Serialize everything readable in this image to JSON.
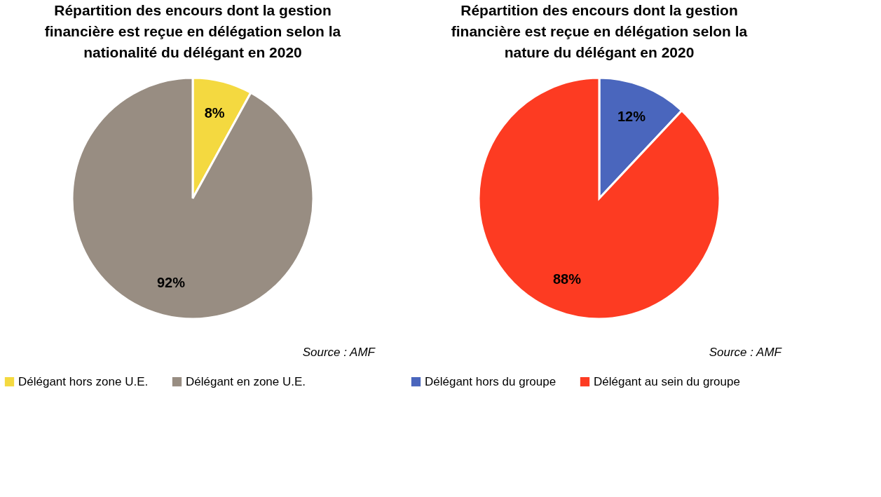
{
  "chart_data": [
    {
      "type": "pie",
      "title": "Répartition des encours dont la gestion financière est reçue en délégation selon la nationalité du délégant en 2020",
      "categories": [
        "Délégant hors zone U.E.",
        "Délégant en zone U.E."
      ],
      "values": [
        8,
        92
      ],
      "colors": [
        "#f4d940",
        "#988d82"
      ],
      "value_labels": [
        "8%",
        "92%"
      ],
      "legend": "bottom",
      "annotations": [
        "Source : AMF"
      ]
    },
    {
      "type": "pie",
      "title": "Répartition des encours dont la gestion financière est reçue en délégation selon la nature du délégant en 2020",
      "categories": [
        "Délégant hors du groupe",
        "Délégant au sein du groupe"
      ],
      "values": [
        12,
        88
      ],
      "colors": [
        "#4a66bd",
        "#fd3b22"
      ],
      "value_labels": [
        "12%",
        "88%"
      ],
      "legend": "bottom",
      "annotations": [
        "Source : AMF"
      ]
    }
  ]
}
